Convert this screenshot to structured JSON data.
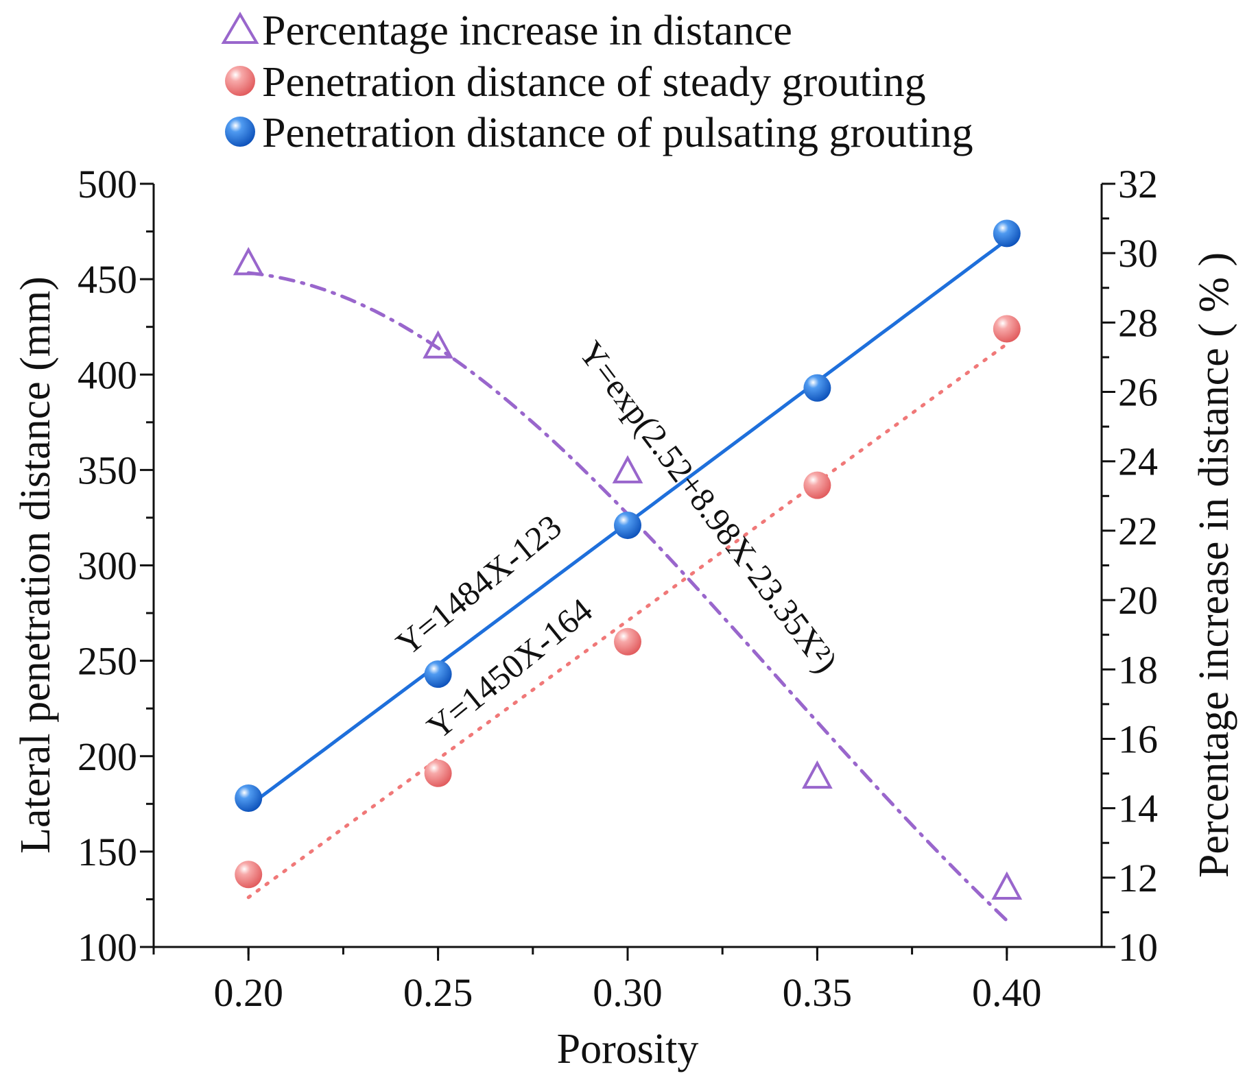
{
  "chart_data": {
    "type": "scatter",
    "title": "",
    "xlabel": "Porosity",
    "ylabel": "Lateral penetration distance (mm)",
    "ylabel_right": "Percentage increase in distance ( % )",
    "x": [
      0.2,
      0.25,
      0.3,
      0.35,
      0.4
    ],
    "x_tick_labels": [
      "0.20",
      "0.25",
      "0.30",
      "0.35",
      "0.40"
    ],
    "xlim": [
      0.175,
      0.425
    ],
    "ylim": [
      100,
      500
    ],
    "y_ticks": [
      "100",
      "150",
      "200",
      "250",
      "300",
      "350",
      "400",
      "450",
      "500"
    ],
    "ylim_right": [
      10,
      32
    ],
    "y_ticks_right": [
      "10",
      "12",
      "14",
      "16",
      "18",
      "20",
      "22",
      "24",
      "26",
      "28",
      "30",
      "32"
    ],
    "grid": false,
    "legend_position": "top",
    "series": [
      {
        "name": "Percentage increase in distance",
        "axis": "right",
        "marker": "triangle",
        "color": "#9966cc",
        "values": [
          29.7,
          27.3,
          23.7,
          14.9,
          11.7
        ],
        "fit": {
          "label": "Y=exp(2.52+8.98X-23.35X²)",
          "a": 2.52,
          "b": 8.98,
          "c": -23.35,
          "style": "dash-dot",
          "color": "#9966cc"
        }
      },
      {
        "name": "Penetration distance of steady grouting",
        "axis": "left",
        "marker": "sphere",
        "color": "#f07878",
        "values": [
          138,
          191,
          260,
          342,
          424
        ],
        "fit": {
          "label": "Y=1450X-164",
          "slope": 1450,
          "intercept": -164,
          "style": "dotted",
          "color": "#f07878"
        }
      },
      {
        "name": "Penetration distance of pulsating grouting",
        "axis": "left",
        "marker": "sphere",
        "color": "#1e6fdb",
        "values": [
          178,
          243,
          321,
          393,
          474
        ],
        "fit": {
          "label": "Y=1484X-123",
          "slope": 1484,
          "intercept": -123,
          "style": "solid",
          "color": "#1e6fdb"
        }
      }
    ]
  }
}
